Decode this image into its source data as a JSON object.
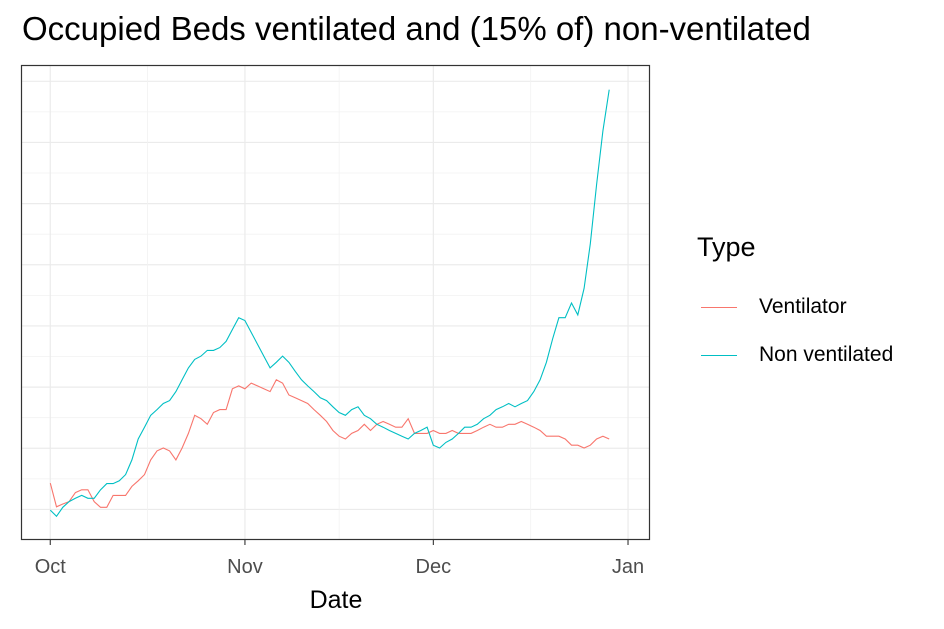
{
  "chart_data": {
    "type": "line",
    "title": "Occupied Beds ventilated and (15% of) non-ventilated",
    "xlabel": "Date",
    "ylabel": "",
    "x_ticks": [
      {
        "label": "Oct",
        "day": 0
      },
      {
        "label": "Nov",
        "day": 31
      },
      {
        "label": "Dec",
        "day": 61
      },
      {
        "label": "Jan",
        "day": 92
      }
    ],
    "xlim": [
      -4.5,
      95.5
    ],
    "ylim": [
      0,
      100
    ],
    "legend_title": "Type",
    "legend_position": "right",
    "series": [
      {
        "name": "Ventilator",
        "color": "#F8766D",
        "x": [
          0,
          1,
          2,
          3,
          4,
          5,
          6,
          7,
          8,
          9,
          10,
          11,
          12,
          13,
          14,
          15,
          16,
          17,
          18,
          19,
          20,
          21,
          22,
          23,
          24,
          25,
          26,
          27,
          28,
          29,
          30,
          31,
          32,
          33,
          34,
          35,
          36,
          37,
          38,
          39,
          40,
          41,
          42,
          43,
          44,
          45,
          46,
          47,
          48,
          49,
          50,
          51,
          52,
          53,
          54,
          55,
          56,
          57,
          58,
          59,
          60,
          61,
          62,
          63,
          64,
          65,
          66,
          67,
          68,
          69,
          70,
          71,
          72,
          73,
          74,
          75,
          76,
          77,
          78,
          79,
          80,
          81,
          82,
          83,
          84,
          85,
          86,
          87,
          88,
          89
        ],
        "values": [
          12,
          7,
          7.6,
          8.1,
          10,
          10.6,
          10.6,
          8.1,
          6.9,
          6.9,
          9.4,
          9.4,
          9.4,
          11.3,
          12.5,
          13.8,
          16.9,
          18.8,
          19.4,
          18.8,
          16.9,
          19.4,
          22.5,
          26.3,
          25.6,
          24.4,
          26.9,
          27.5,
          27.5,
          31.9,
          32.5,
          31.9,
          33.1,
          32.5,
          31.9,
          31.3,
          33.8,
          33.1,
          30.6,
          30,
          29.4,
          28.8,
          27.5,
          26.3,
          25,
          23.1,
          21.9,
          21.3,
          22.5,
          23.1,
          24.4,
          23.1,
          24.4,
          25,
          24.4,
          23.8,
          23.8,
          25.6,
          22.5,
          22.5,
          22.5,
          23.1,
          22.5,
          22.5,
          23.1,
          22.5,
          22.5,
          22.5,
          23.1,
          23.8,
          24.4,
          23.8,
          23.8,
          24.4,
          24.4,
          25,
          24.4,
          23.8,
          23.1,
          21.9,
          21.9,
          21.9,
          21.3,
          20,
          20,
          19.4,
          20,
          21.3,
          21.9,
          21.3
        ]
      },
      {
        "name": "Non ventilated",
        "color": "#00BFC4",
        "x": [
          0,
          1,
          2,
          3,
          4,
          5,
          6,
          7,
          8,
          9,
          10,
          11,
          12,
          13,
          14,
          15,
          16,
          17,
          18,
          19,
          20,
          21,
          22,
          23,
          24,
          25,
          26,
          27,
          28,
          29,
          30,
          31,
          32,
          33,
          34,
          35,
          36,
          37,
          38,
          39,
          40,
          41,
          42,
          43,
          44,
          45,
          46,
          47,
          48,
          49,
          50,
          51,
          52,
          53,
          54,
          55,
          56,
          57,
          58,
          59,
          60,
          61,
          62,
          63,
          64,
          65,
          66,
          67,
          68,
          69,
          70,
          71,
          72,
          73,
          74,
          75,
          76,
          77,
          78,
          79,
          80,
          81,
          82,
          83,
          84,
          85,
          86,
          87,
          88,
          89
        ],
        "values": [
          6.3,
          5,
          6.9,
          8.1,
          8.8,
          9.4,
          8.8,
          8.8,
          10.6,
          11.9,
          11.9,
          12.5,
          13.8,
          16.9,
          21.3,
          23.8,
          26.3,
          27.5,
          28.8,
          29.4,
          31.3,
          33.8,
          36.3,
          38.1,
          38.8,
          40,
          40,
          40.6,
          41.9,
          44.4,
          46.9,
          46.3,
          43.8,
          41.3,
          38.8,
          36.3,
          37.5,
          38.8,
          37.5,
          35.6,
          33.8,
          32.5,
          31.3,
          30,
          29.4,
          28.1,
          26.9,
          26.3,
          27.5,
          28.1,
          26.3,
          25.6,
          24.4,
          23.8,
          23.1,
          22.5,
          21.9,
          21.3,
          22.5,
          23.1,
          23.8,
          20,
          19.4,
          20.6,
          21.3,
          22.5,
          23.8,
          23.8,
          24.4,
          25.6,
          26.3,
          27.5,
          28.1,
          28.8,
          28.1,
          28.8,
          29.4,
          31.3,
          33.8,
          37.5,
          42.5,
          46.9,
          46.9,
          50,
          47.5,
          53.1,
          62.5,
          75,
          86.3,
          95
        ]
      }
    ]
  }
}
